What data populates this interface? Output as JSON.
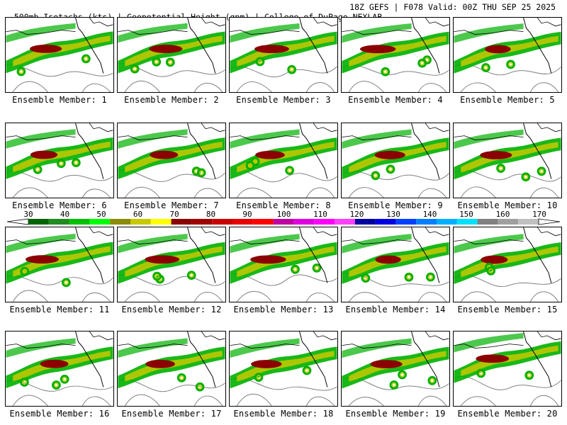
{
  "header": {
    "left": "500mb Isotachs (kts) | Geopotential Height (gpm) | College of DuPage NEXLAB",
    "right": "18Z GEFS | F078 Valid: 00Z THU SEP 25 2025"
  },
  "members": [
    "Ensemble Member: 1",
    "Ensemble Member: 2",
    "Ensemble Member: 3",
    "Ensemble Member: 4",
    "Ensemble Member: 5",
    "Ensemble Member: 6",
    "Ensemble Member: 7",
    "Ensemble Member: 8",
    "Ensemble Member: 9",
    "Ensemble Member: 10",
    "Ensemble Member: 11",
    "Ensemble Member: 12",
    "Ensemble Member: 13",
    "Ensemble Member: 14",
    "Ensemble Member: 15",
    "Ensemble Member: 16",
    "Ensemble Member: 17",
    "Ensemble Member: 18",
    "Ensemble Member: 19",
    "Ensemble Member: 20"
  ],
  "colorbar": {
    "labels": [
      "30",
      "40",
      "50",
      "60",
      "70",
      "80",
      "90",
      "100",
      "110",
      "120",
      "130",
      "140",
      "150",
      "160",
      "170"
    ],
    "colors": [
      "#006400",
      "#228b22",
      "#00c000",
      "#00ff00",
      "#8b8b00",
      "#c8c800",
      "#ffff00",
      "#8b0000",
      "#a00000",
      "#c80000",
      "#e80000",
      "#ff0000",
      "#c000a0",
      "#e000e0",
      "#ff00ff",
      "#ff40ff",
      "#0000a0",
      "#0000e0",
      "#0040ff",
      "#0080ff",
      "#00b0ff",
      "#00e0ff",
      "#808080",
      "#a0a0a0",
      "#c0c0c0"
    ]
  },
  "colors": {
    "jet_green": "#00b000",
    "jet_yellow": "#c8c800",
    "jet_core": "#8b0000",
    "height_contour": "#808080",
    "coast": "#000000"
  }
}
